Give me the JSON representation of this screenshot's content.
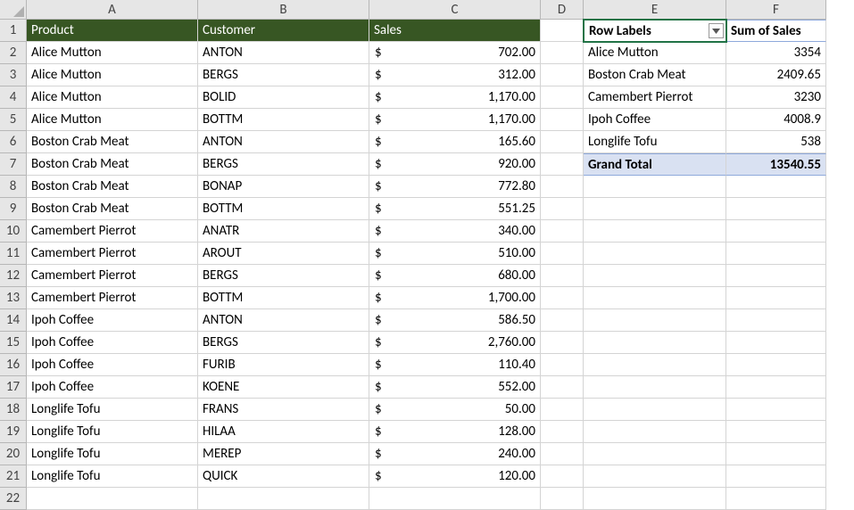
{
  "columns": [
    "A",
    "B",
    "C",
    "D",
    "E",
    "F"
  ],
  "rowCount": 22,
  "greenHeader": {
    "product": "Product",
    "customer": "Customer",
    "sales": "Sales"
  },
  "data": [
    {
      "product": "Alice Mutton",
      "customer": "ANTON",
      "sales": "702.00"
    },
    {
      "product": "Alice Mutton",
      "customer": "BERGS",
      "sales": "312.00"
    },
    {
      "product": "Alice Mutton",
      "customer": "BOLID",
      "sales": "1,170.00"
    },
    {
      "product": "Alice Mutton",
      "customer": "BOTTM",
      "sales": "1,170.00"
    },
    {
      "product": "Boston Crab Meat",
      "customer": "ANTON",
      "sales": "165.60"
    },
    {
      "product": "Boston Crab Meat",
      "customer": "BERGS",
      "sales": "920.00"
    },
    {
      "product": "Boston Crab Meat",
      "customer": "BONAP",
      "sales": "772.80"
    },
    {
      "product": "Boston Crab Meat",
      "customer": "BOTTM",
      "sales": "551.25"
    },
    {
      "product": "Camembert Pierrot",
      "customer": "ANATR",
      "sales": "340.00"
    },
    {
      "product": "Camembert Pierrot",
      "customer": "AROUT",
      "sales": "510.00"
    },
    {
      "product": "Camembert Pierrot",
      "customer": "BERGS",
      "sales": "680.00"
    },
    {
      "product": "Camembert Pierrot",
      "customer": "BOTTM",
      "sales": "1,700.00"
    },
    {
      "product": "Ipoh Coffee",
      "customer": "ANTON",
      "sales": "586.50"
    },
    {
      "product": "Ipoh Coffee",
      "customer": "BERGS",
      "sales": "2,760.00"
    },
    {
      "product": "Ipoh Coffee",
      "customer": "FURIB",
      "sales": "110.40"
    },
    {
      "product": "Ipoh Coffee",
      "customer": "KOENE",
      "sales": "552.00"
    },
    {
      "product": "Longlife Tofu",
      "customer": "FRANS",
      "sales": "50.00"
    },
    {
      "product": "Longlife Tofu",
      "customer": "HILAA",
      "sales": "128.00"
    },
    {
      "product": "Longlife Tofu",
      "customer": "MEREP",
      "sales": "240.00"
    },
    {
      "product": "Longlife Tofu",
      "customer": "QUICK",
      "sales": "120.00"
    }
  ],
  "currencySymbol": "$",
  "pivot": {
    "rowLabelsHeader": "Row Labels",
    "sumHeader": "Sum of Sales",
    "rows": [
      {
        "label": "Alice Mutton",
        "value": "3354"
      },
      {
        "label": "Boston Crab Meat",
        "value": "2409.65"
      },
      {
        "label": "Camembert Pierrot",
        "value": "3230"
      },
      {
        "label": "Ipoh Coffee",
        "value": "4008.9"
      },
      {
        "label": "Longlife Tofu",
        "value": "538"
      }
    ],
    "grandTotalLabel": "Grand Total",
    "grandTotalValue": "13540.55"
  },
  "colors": {
    "headerGreen": "#375623",
    "gridline": "#d4d4d4",
    "headerGray": "#e6e6e6",
    "pivotBorder": "#8ea9db",
    "pivotTotalBg": "#d9e1f2",
    "selection": "#217346"
  }
}
